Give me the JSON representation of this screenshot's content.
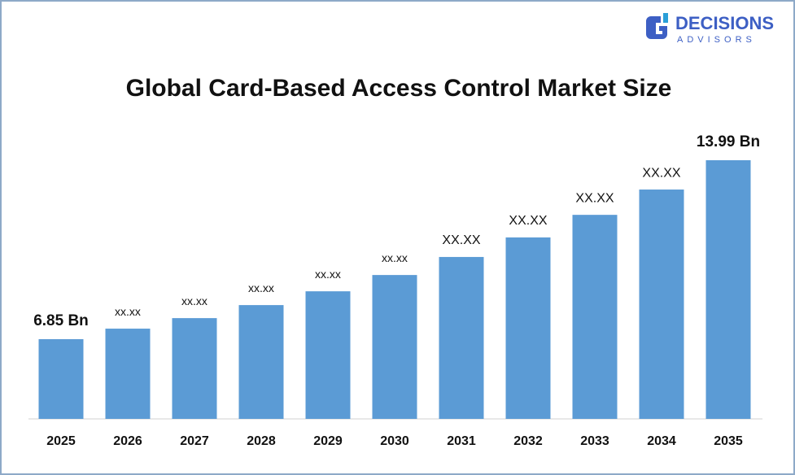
{
  "logo": {
    "name": "DECISIONS",
    "tagline": "ADVISORS"
  },
  "chart_data": {
    "type": "bar",
    "title": "Global Card-Based Access Control Market Size",
    "categories": [
      "2025",
      "2026",
      "2027",
      "2028",
      "2029",
      "2030",
      "2031",
      "2032",
      "2033",
      "2034",
      "2035"
    ],
    "values": [
      6.85,
      7.27,
      7.69,
      8.21,
      8.76,
      9.41,
      10.13,
      10.91,
      11.81,
      12.82,
      13.99
    ],
    "value_labels": [
      "6.85 Bn",
      "xx.xx",
      "xx.xx",
      "xx.xx",
      "xx.xx",
      "xx.xx",
      "XX.XX",
      "XX.XX",
      "XX.XX",
      "XX.XX",
      "13.99 Bn"
    ],
    "color": "#5b9bd5",
    "ylim": [
      3.67,
      15.19
    ]
  }
}
